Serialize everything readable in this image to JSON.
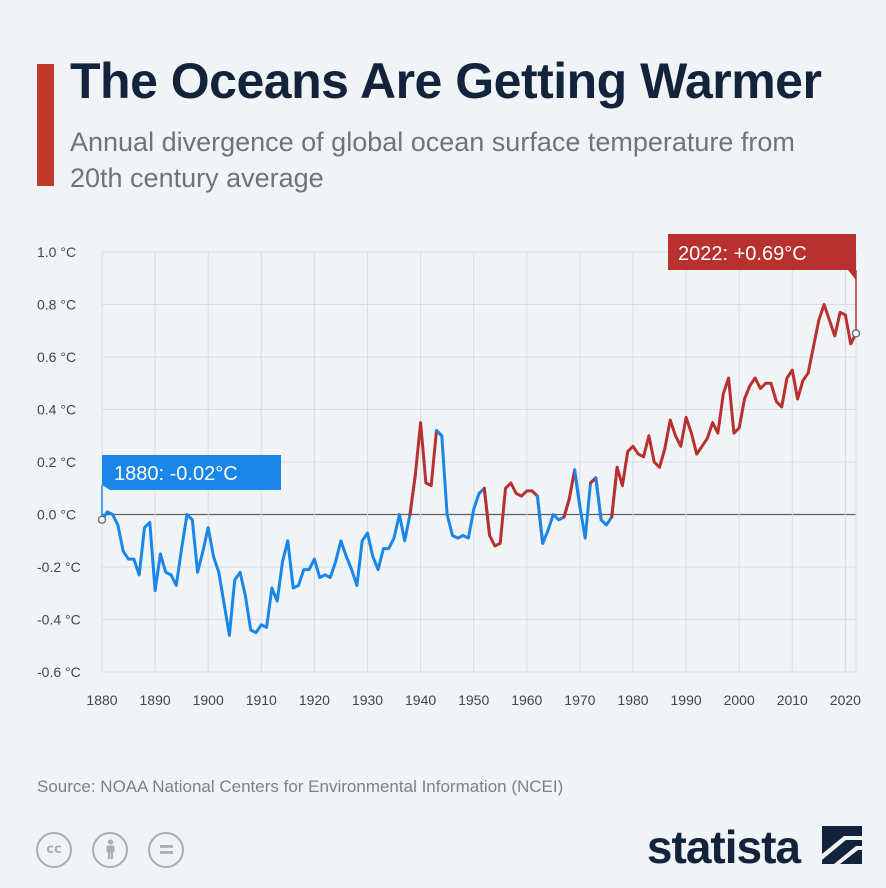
{
  "header": {
    "title": "The Oceans Are Getting Warmer",
    "subtitle": "Annual divergence of global ocean surface temperature from 20th century average"
  },
  "footer": {
    "source": "Source: NOAA National Centers for Environmental Information (NCEI)",
    "brand": "statista",
    "license_icons": [
      "creative-commons-icon",
      "attribution-icon",
      "no-derivatives-icon"
    ]
  },
  "colors": {
    "negative": "#1a86e8",
    "positive": "#b8312f",
    "accent": "#c0392b",
    "title": "#14233c"
  },
  "chart_data": {
    "type": "line",
    "title": "The Oceans Are Getting Warmer",
    "xlabel": "",
    "ylabel": "",
    "xlim": [
      1880,
      2022
    ],
    "ylim": [
      -0.6,
      1.0
    ],
    "y_ticks": [
      "1.0 °C",
      "0.8 °C",
      "0.6 °C",
      "0.4 °C",
      "0.2 °C",
      "0.0 °C",
      "-0.2 °C",
      "-0.4 °C",
      "-0.6 °C"
    ],
    "y_tick_values": [
      1.0,
      0.8,
      0.6,
      0.4,
      0.2,
      0.0,
      -0.2,
      -0.4,
      -0.6
    ],
    "x_ticks": [
      1880,
      1890,
      1900,
      1910,
      1920,
      1930,
      1940,
      1950,
      1960,
      1970,
      1980,
      1990,
      2000,
      2010,
      2020
    ],
    "grid": true,
    "annotations": [
      {
        "label": "1880: -0.02°C",
        "x": 1880,
        "y": -0.02
      },
      {
        "label": "2022: +0.69°C",
        "x": 2022,
        "y": 0.69
      }
    ],
    "series": [
      {
        "x": [
          1880,
          1881,
          1882,
          1883,
          1884,
          1885,
          1886,
          1887,
          1888,
          1889,
          1890,
          1891,
          1892,
          1893,
          1894,
          1895,
          1896,
          1897,
          1898,
          1899,
          1900,
          1901,
          1902,
          1903,
          1904,
          1905,
          1906,
          1907,
          1908,
          1909,
          1910,
          1911,
          1912,
          1913,
          1914,
          1915,
          1916,
          1917,
          1918,
          1919,
          1920,
          1921,
          1922,
          1923,
          1924,
          1925,
          1926,
          1927,
          1928,
          1929,
          1930,
          1931,
          1932,
          1933,
          1934,
          1935,
          1936,
          1937,
          1938,
          1939,
          1940,
          1941,
          1942,
          1943,
          1944,
          1945,
          1946,
          1947,
          1948,
          1949,
          1950,
          1951,
          1952,
          1953,
          1954,
          1955,
          1956,
          1957,
          1958,
          1959,
          1960,
          1961,
          1962,
          1963,
          1964,
          1965,
          1966,
          1967,
          1968,
          1969,
          1970,
          1971,
          1972,
          1973,
          1974,
          1975,
          1976,
          1977,
          1978,
          1979,
          1980,
          1981,
          1982,
          1983,
          1984,
          1985,
          1986,
          1987,
          1988,
          1989,
          1990,
          1991,
          1992,
          1993,
          1994,
          1995,
          1996,
          1997,
          1998,
          1999,
          2000,
          2001,
          2002,
          2003,
          2004,
          2005,
          2006,
          2007,
          2008,
          2009,
          2010,
          2011,
          2012,
          2013,
          2014,
          2015,
          2016,
          2017,
          2018,
          2019,
          2020,
          2021,
          2022
        ],
        "values": [
          -0.02,
          0.01,
          0.0,
          -0.04,
          -0.14,
          -0.17,
          -0.17,
          -0.23,
          -0.05,
          -0.03,
          -0.29,
          -0.15,
          -0.22,
          -0.23,
          -0.27,
          -0.13,
          0.0,
          -0.02,
          -0.22,
          -0.14,
          -0.05,
          -0.16,
          -0.22,
          -0.34,
          -0.46,
          -0.25,
          -0.22,
          -0.31,
          -0.44,
          -0.45,
          -0.42,
          -0.43,
          -0.28,
          -0.33,
          -0.18,
          -0.1,
          -0.28,
          -0.27,
          -0.21,
          -0.21,
          -0.17,
          -0.24,
          -0.23,
          -0.24,
          -0.18,
          -0.1,
          -0.16,
          -0.21,
          -0.27,
          -0.1,
          -0.07,
          -0.16,
          -0.21,
          -0.13,
          -0.13,
          -0.09,
          0.0,
          -0.1,
          0.0,
          0.15,
          0.35,
          0.12,
          0.11,
          0.32,
          0.3,
          0.0,
          -0.08,
          -0.09,
          -0.08,
          -0.09,
          0.02,
          0.08,
          0.1,
          -0.08,
          -0.12,
          -0.11,
          0.1,
          0.12,
          0.08,
          0.07,
          0.09,
          0.09,
          0.07,
          -0.11,
          -0.06,
          0.0,
          -0.02,
          -0.01,
          0.06,
          0.17,
          0.03,
          -0.09,
          0.12,
          0.14,
          -0.02,
          -0.04,
          -0.01,
          0.18,
          0.11,
          0.24,
          0.26,
          0.23,
          0.22,
          0.3,
          0.2,
          0.18,
          0.25,
          0.36,
          0.3,
          0.26,
          0.37,
          0.31,
          0.23,
          0.26,
          0.29,
          0.35,
          0.31,
          0.46,
          0.52,
          0.31,
          0.33,
          0.44,
          0.49,
          0.52,
          0.48,
          0.5,
          0.5,
          0.43,
          0.41,
          0.52,
          0.55,
          0.44,
          0.51,
          0.54,
          0.64,
          0.74,
          0.8,
          0.74,
          0.68,
          0.77,
          0.76,
          0.65,
          0.69
        ]
      }
    ]
  }
}
